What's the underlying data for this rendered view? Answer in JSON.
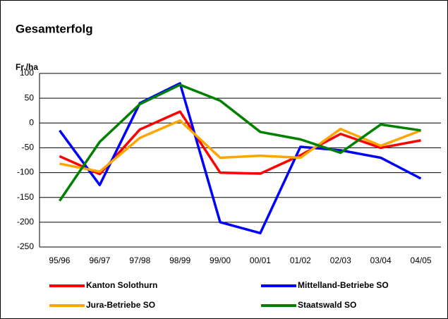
{
  "chart_data": {
    "type": "line",
    "title": "Gesamterfolg",
    "y_label": "Fr./ha",
    "categories": [
      "95/96",
      "96/97",
      "97/98",
      "98/99",
      "99/00",
      "00/01",
      "01/02",
      "02/03",
      "03/04",
      "04/05"
    ],
    "series": [
      {
        "name": "Kanton Solothurn",
        "color": "#ff0000",
        "values": [
          -67,
          -103,
          -13,
          23,
          -100,
          -102,
          -65,
          -22,
          -50,
          -35
        ]
      },
      {
        "name": "Mittelland-Betriebe SO",
        "color": "#0000ff",
        "values": [
          -15,
          -125,
          40,
          80,
          -200,
          -222,
          -48,
          -55,
          -70,
          -112
        ]
      },
      {
        "name": "Jura-Betriebe SO",
        "color": "#ffa500",
        "values": [
          -82,
          -98,
          -30,
          5,
          -70,
          -66,
          -70,
          -12,
          -46,
          -15
        ]
      },
      {
        "name": "Staatswald SO",
        "color": "#008000",
        "values": [
          -157,
          -38,
          38,
          77,
          45,
          -18,
          -33,
          -60,
          -3,
          -15
        ]
      }
    ],
    "ylim": [
      -250,
      100
    ],
    "yticks": [
      -250,
      -200,
      -150,
      -100,
      -50,
      0,
      50,
      100
    ],
    "grid": true
  }
}
